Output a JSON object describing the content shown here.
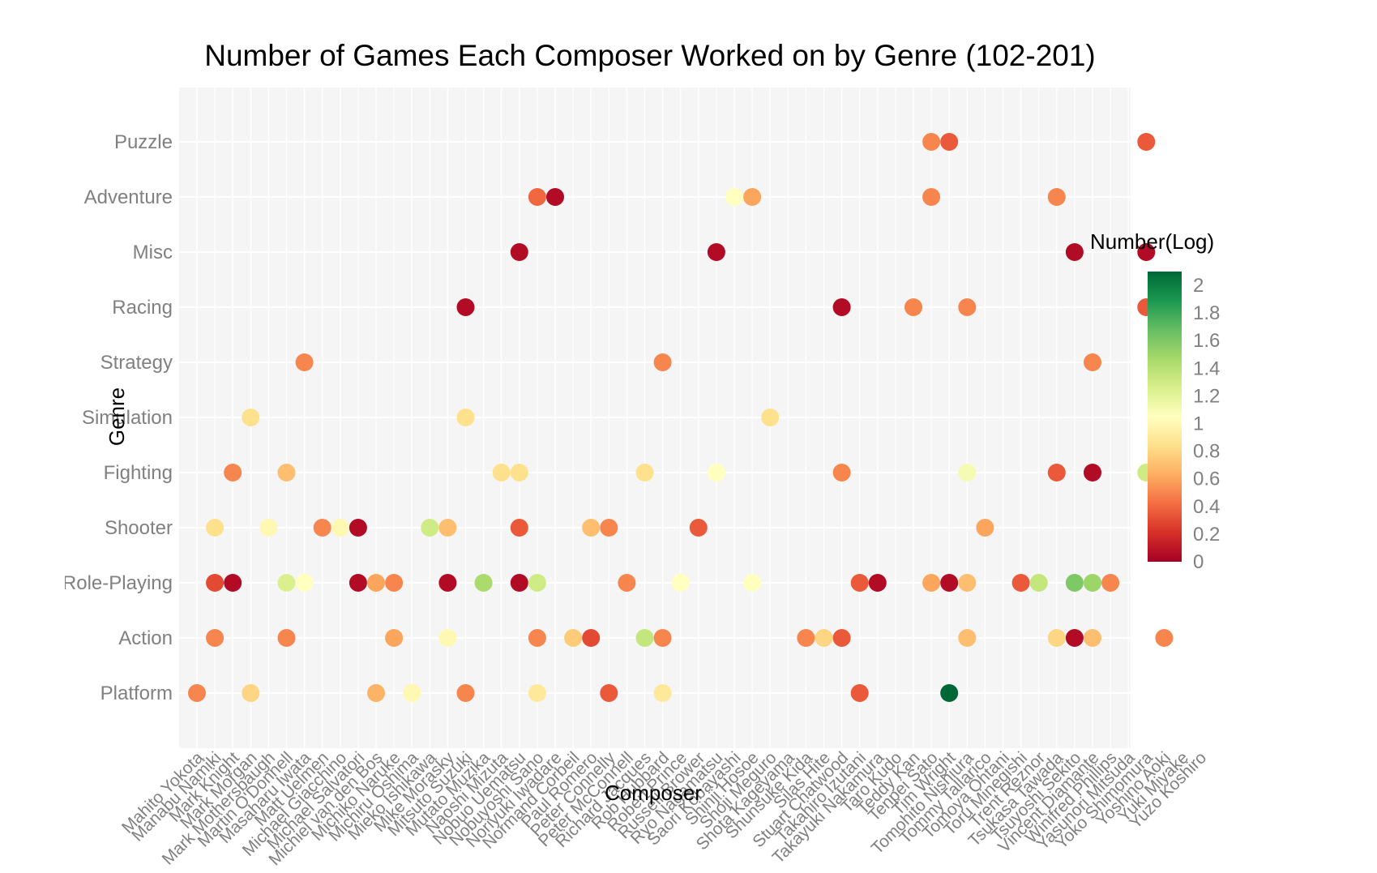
{
  "chart_data": {
    "type": "scatter",
    "title": "Number of Games Each Composer Worked on by Genre (102-201)",
    "xlabel": "Composer",
    "ylabel": "Genre",
    "legend_title": "Number(Log)",
    "legend_position": "right",
    "grid": true,
    "colorscale": {
      "name": "RdYlGn",
      "range": [
        0,
        2.1
      ],
      "ticks": [
        0,
        0.2,
        0.4,
        0.6,
        0.8,
        1,
        1.2,
        1.4,
        1.6,
        1.8,
        2
      ],
      "tick_labels": [
        "0",
        "0.2",
        "0.4",
        "0.6",
        "0.8",
        "1",
        "1.2",
        "1.4",
        "1.6",
        "1.8",
        "2"
      ],
      "stops": [
        "#a50026",
        "#d73027",
        "#f46d43",
        "#fdae61",
        "#fee08b",
        "#ffffbf",
        "#d9ef8b",
        "#a6d96a",
        "#66bd63",
        "#1a9850",
        "#006837"
      ]
    },
    "genres": [
      "Platform",
      "Action",
      "Role-Playing",
      "Shooter",
      "Fighting",
      "Simulation",
      "Strategy",
      "Racing",
      "Misc",
      "Adventure",
      "Puzzle"
    ],
    "composers": [
      "Mahito Yokota",
      "Manabu Namiki",
      "Mark Knight",
      "Mark Morgan",
      "Mark Mothersbaugh",
      "Martin O'Donnell",
      "Masaharu Iwata",
      "Matt Uelmen",
      "Michael Giacchino",
      "Michael Salvatori",
      "Michiel van den Bos",
      "Michiko Naruke",
      "Michiru Oshima",
      "Mieko Ishikawa",
      "Mike Morasky",
      "Mitsuto Suzuki",
      "Mutato Muzika",
      "Naoshi Mizuta",
      "Nobuo Uematsu",
      "Nobuyoshi Sano",
      "Noriyuki Iwadare",
      "Normand Corbeil",
      "Paul Romero",
      "Peter Connelly",
      "Peter McConnell",
      "Richard Jacques",
      "Rob Hubbard",
      "Robert Prince",
      "Russell Brower",
      "Ryo Nagamatsu",
      "Saori Kobayashi",
      "Shinji Hosoe",
      "Shoji Meguro",
      "Shota Kageyama",
      "Shunsuke Kida",
      "Silas Hite",
      "Stuart Chatwood",
      "Takahiro Izutani",
      "Takayuki Nakamura",
      "Taro Kudo",
      "Teddy Kan",
      "Tenpei Sato",
      "Tim Wright",
      "Tomohito Nishiura",
      "Tommy Tallarico",
      "Tomoya Ohtani",
      "Toru Minegishi",
      "Trent Reznor",
      "Tsukasa Tawada",
      "Tsuyoshi Sekito",
      "Vincent Diamante",
      "Winifred Phillips",
      "Yasunori Mitsuda",
      "Yoko Shimomura",
      "Yoshino Aoki",
      "Yuki Miyake",
      "Yuzo Koshiro"
    ],
    "points": [
      {
        "composer": "Mahito Yokota",
        "genre": "Platform",
        "value": 0.5
      },
      {
        "composer": "Manabu Namiki",
        "genre": "Action",
        "value": 0.5
      },
      {
        "composer": "Manabu Namiki",
        "genre": "Role-Playing",
        "value": 0.3
      },
      {
        "composer": "Manabu Namiki",
        "genre": "Shooter",
        "value": 0.85
      },
      {
        "composer": "Mark Knight",
        "genre": "Role-Playing",
        "value": 0.05
      },
      {
        "composer": "Mark Knight",
        "genre": "Fighting",
        "value": 0.5
      },
      {
        "composer": "Mark Morgan",
        "genre": "Platform",
        "value": 0.8
      },
      {
        "composer": "Mark Morgan",
        "genre": "Simulation",
        "value": 0.85
      },
      {
        "composer": "Mark Mothersbaugh",
        "genre": "Shooter",
        "value": 1.0
      },
      {
        "composer": "Martin O'Donnell",
        "genre": "Action",
        "value": 0.5
      },
      {
        "composer": "Martin O'Donnell",
        "genre": "Role-Playing",
        "value": 1.25
      },
      {
        "composer": "Martin O'Donnell",
        "genre": "Fighting",
        "value": 0.7
      },
      {
        "composer": "Masaharu Iwata",
        "genre": "Role-Playing",
        "value": 1.05
      },
      {
        "composer": "Masaharu Iwata",
        "genre": "Strategy",
        "value": 0.5
      },
      {
        "composer": "Matt Uelmen",
        "genre": "Shooter",
        "value": 0.5
      },
      {
        "composer": "Michael Giacchino",
        "genre": "Shooter",
        "value": 1.0
      },
      {
        "composer": "Michael Salvatori",
        "genre": "Role-Playing",
        "value": 0.05
      },
      {
        "composer": "Michael Salvatori",
        "genre": "Shooter",
        "value": 0.05
      },
      {
        "composer": "Michiel van den Bos",
        "genre": "Platform",
        "value": 0.65
      },
      {
        "composer": "Michiel van den Bos",
        "genre": "Role-Playing",
        "value": 0.6
      },
      {
        "composer": "Michiko Naruke",
        "genre": "Action",
        "value": 0.6
      },
      {
        "composer": "Michiko Naruke",
        "genre": "Role-Playing",
        "value": 0.5
      },
      {
        "composer": "Michiru Oshima",
        "genre": "Platform",
        "value": 1.0
      },
      {
        "composer": "Mieko Ishikawa",
        "genre": "Shooter",
        "value": 1.3
      },
      {
        "composer": "Mike Morasky",
        "genre": "Action",
        "value": 1.0
      },
      {
        "composer": "Mike Morasky",
        "genre": "Role-Playing",
        "value": 0.05
      },
      {
        "composer": "Mike Morasky",
        "genre": "Shooter",
        "value": 0.7
      },
      {
        "composer": "Mitsuto Suzuki",
        "genre": "Platform",
        "value": 0.5
      },
      {
        "composer": "Mitsuto Suzuki",
        "genre": "Simulation",
        "value": 0.85
      },
      {
        "composer": "Mitsuto Suzuki",
        "genre": "Racing",
        "value": 0.05
      },
      {
        "composer": "Mutato Muzika",
        "genre": "Role-Playing",
        "value": 1.45
      },
      {
        "composer": "Naoshi Mizuta",
        "genre": "Fighting",
        "value": 0.85
      },
      {
        "composer": "Nobuo Uematsu",
        "genre": "Role-Playing",
        "value": 0.05
      },
      {
        "composer": "Nobuo Uematsu",
        "genre": "Shooter",
        "value": 0.35
      },
      {
        "composer": "Nobuo Uematsu",
        "genre": "Fighting",
        "value": 0.85
      },
      {
        "composer": "Nobuo Uematsu",
        "genre": "Misc",
        "value": 0.05
      },
      {
        "composer": "Nobuyoshi Sano",
        "genre": "Platform",
        "value": 0.9
      },
      {
        "composer": "Nobuyoshi Sano",
        "genre": "Action",
        "value": 0.5
      },
      {
        "composer": "Nobuyoshi Sano",
        "genre": "Role-Playing",
        "value": 1.3
      },
      {
        "composer": "Nobuyoshi Sano",
        "genre": "Adventure",
        "value": 0.4
      },
      {
        "composer": "Noriyuki Iwadare",
        "genre": "Adventure",
        "value": 0.05
      },
      {
        "composer": "Normand Corbeil",
        "genre": "Action",
        "value": 0.75
      },
      {
        "composer": "Paul Romero",
        "genre": "Shooter",
        "value": 0.7
      },
      {
        "composer": "Paul Romero",
        "genre": "Action",
        "value": 0.3
      },
      {
        "composer": "Peter Connelly",
        "genre": "Shooter",
        "value": 0.5
      },
      {
        "composer": "Peter Connelly",
        "genre": "Platform",
        "value": 0.35
      },
      {
        "composer": "Peter McConnell",
        "genre": "Role-Playing",
        "value": 0.5
      },
      {
        "composer": "Richard Jacques",
        "genre": "Fighting",
        "value": 0.85
      },
      {
        "composer": "Richard Jacques",
        "genre": "Action",
        "value": 1.35
      },
      {
        "composer": "Rob Hubbard",
        "genre": "Action",
        "value": 0.5
      },
      {
        "composer": "Rob Hubbard",
        "genre": "Platform",
        "value": 0.9
      },
      {
        "composer": "Rob Hubbard",
        "genre": "Strategy",
        "value": 0.5
      },
      {
        "composer": "Robert Prince",
        "genre": "Role-Playing",
        "value": 1.05
      },
      {
        "composer": "Russell Brower",
        "genre": "Shooter",
        "value": 0.35
      },
      {
        "composer": "Ryo Nagamatsu",
        "genre": "Fighting",
        "value": 1.05
      },
      {
        "composer": "Ryo Nagamatsu",
        "genre": "Misc",
        "value": 0.05
      },
      {
        "composer": "Saori Kobayashi",
        "genre": "Adventure",
        "value": 1.05
      },
      {
        "composer": "Shinji Hosoe",
        "genre": "Role-Playing",
        "value": 1.05
      },
      {
        "composer": "Shinji Hosoe",
        "genre": "Adventure",
        "value": 0.6
      },
      {
        "composer": "Shoji Meguro",
        "genre": "Simulation",
        "value": 0.85
      },
      {
        "composer": "Shunsuke Kida",
        "genre": "Action",
        "value": 0.5
      },
      {
        "composer": "Silas Hite",
        "genre": "Action",
        "value": 0.8
      },
      {
        "composer": "Stuart Chatwood",
        "genre": "Action",
        "value": 0.35
      },
      {
        "composer": "Stuart Chatwood",
        "genre": "Fighting",
        "value": 0.5
      },
      {
        "composer": "Stuart Chatwood",
        "genre": "Racing",
        "value": 0.05
      },
      {
        "composer": "Takahiro Izutani",
        "genre": "Platform",
        "value": 0.35
      },
      {
        "composer": "Takahiro Izutani",
        "genre": "Role-Playing",
        "value": 0.35
      },
      {
        "composer": "Takayuki Nakamura",
        "genre": "Role-Playing",
        "value": 0.05
      },
      {
        "composer": "Teddy Kan",
        "genre": "Racing",
        "value": 0.5
      },
      {
        "composer": "Tenpei Sato",
        "genre": "Role-Playing",
        "value": 0.6
      },
      {
        "composer": "Tenpei Sato",
        "genre": "Adventure",
        "value": 0.5
      },
      {
        "composer": "Tenpei Sato",
        "genre": "Puzzle",
        "value": 0.5
      },
      {
        "composer": "Tim Wright",
        "genre": "Platform",
        "value": 2.1
      },
      {
        "composer": "Tim Wright",
        "genre": "Role-Playing",
        "value": 0.05
      },
      {
        "composer": "Tim Wright",
        "genre": "Puzzle",
        "value": 0.35
      },
      {
        "composer": "Tomohito Nishiura",
        "genre": "Action",
        "value": 0.7
      },
      {
        "composer": "Tomohito Nishiura",
        "genre": "Role-Playing",
        "value": 0.7
      },
      {
        "composer": "Tomohito Nishiura",
        "genre": "Fighting",
        "value": 1.1
      },
      {
        "composer": "Tomohito Nishiura",
        "genre": "Racing",
        "value": 0.5
      },
      {
        "composer": "Tommy Tallarico",
        "genre": "Shooter",
        "value": 0.6
      },
      {
        "composer": "Toru Minegishi",
        "genre": "Role-Playing",
        "value": 0.35
      },
      {
        "composer": "Trent Reznor",
        "genre": "Role-Playing",
        "value": 1.35
      },
      {
        "composer": "Tsukasa Tawada",
        "genre": "Action",
        "value": 0.8
      },
      {
        "composer": "Tsukasa Tawada",
        "genre": "Fighting",
        "value": 0.35
      },
      {
        "composer": "Tsukasa Tawada",
        "genre": "Adventure",
        "value": 0.5
      },
      {
        "composer": "Tsuyoshi Sekito",
        "genre": "Action",
        "value": 0.05
      },
      {
        "composer": "Tsuyoshi Sekito",
        "genre": "Role-Playing",
        "value": 1.6
      },
      {
        "composer": "Tsuyoshi Sekito",
        "genre": "Misc",
        "value": 0.05
      },
      {
        "composer": "Vincent Diamante",
        "genre": "Action",
        "value": 0.7
      },
      {
        "composer": "Vincent Diamante",
        "genre": "Role-Playing",
        "value": 1.5
      },
      {
        "composer": "Vincent Diamante",
        "genre": "Fighting",
        "value": 0.05
      },
      {
        "composer": "Vincent Diamante",
        "genre": "Strategy",
        "value": 0.5
      },
      {
        "composer": "Winifred Phillips",
        "genre": "Role-Playing",
        "value": 0.5
      },
      {
        "composer": "Yoko Shimomura",
        "genre": "Fighting",
        "value": 1.3
      },
      {
        "composer": "Yoko Shimomura",
        "genre": "Racing",
        "value": 0.35
      },
      {
        "composer": "Yoko Shimomura",
        "genre": "Misc",
        "value": 0.05
      },
      {
        "composer": "Yoko Shimomura",
        "genre": "Puzzle",
        "value": 0.35
      },
      {
        "composer": "Yoshino Aoki",
        "genre": "Action",
        "value": 0.5
      },
      {
        "composer": "Yoshino Aoki",
        "genre": "Racing",
        "value": 0.5
      }
    ]
  }
}
